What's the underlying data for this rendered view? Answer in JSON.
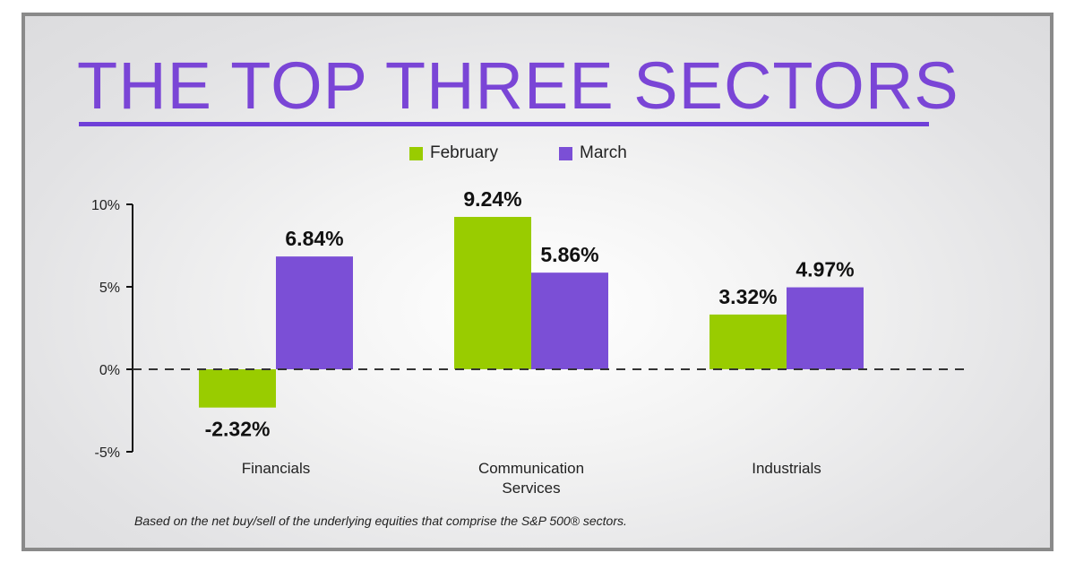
{
  "chart_data": {
    "type": "bar",
    "title": "THE TOP THREE SECTORS",
    "categories": [
      "Financials",
      "Communication Services",
      "Industrials"
    ],
    "category_lines": [
      [
        "Financials"
      ],
      [
        "Communication",
        "Services"
      ],
      [
        "Industrials"
      ]
    ],
    "series": [
      {
        "name": "February",
        "color": "#99cc00",
        "values": [
          -2.32,
          9.24,
          3.32
        ],
        "labels": [
          "-2.32%",
          "9.24%",
          "3.32%"
        ]
      },
      {
        "name": "March",
        "color": "#7b4fd6",
        "values": [
          6.84,
          5.86,
          4.97
        ],
        "labels": [
          "6.84%",
          "5.86%",
          "4.97%"
        ]
      }
    ],
    "ylim": [
      -5,
      10
    ],
    "yticks": [
      10,
      5,
      0,
      -5
    ],
    "ytick_labels": [
      "10%",
      "5%",
      "0%",
      "-5%"
    ],
    "legend": "top-center",
    "footnote": "Based on the net buy/sell of the underlying equities that comprise the S&P 500® sectors."
  }
}
